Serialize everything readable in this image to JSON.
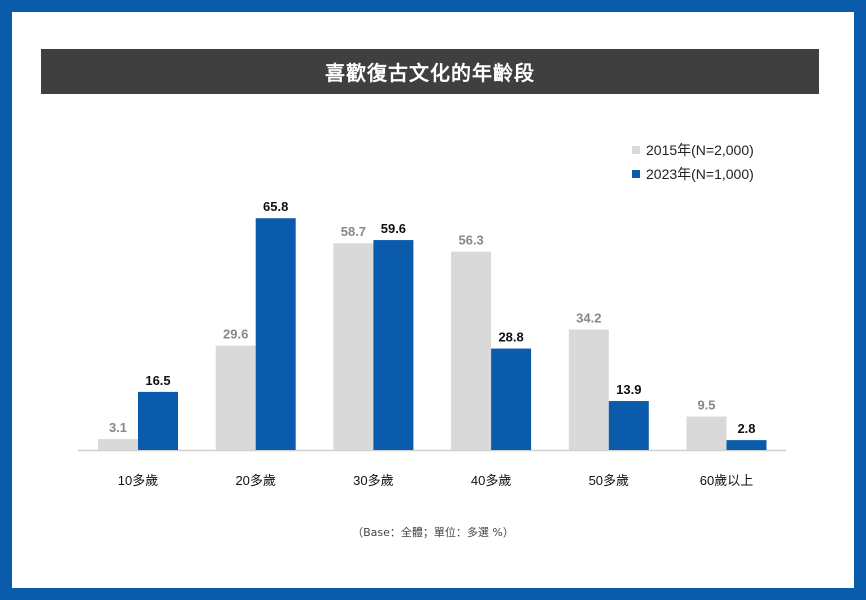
{
  "chart_data": {
    "type": "bar",
    "title": "喜歡復古文化的年齡段",
    "categories": [
      "10多歲",
      "20多歲",
      "30多歲",
      "40多歲",
      "50多歲",
      "60歲以上"
    ],
    "series": [
      {
        "name": "2015年(N=2,000)",
        "color": "#d9d9d9",
        "label_color": "#888888",
        "values": [
          3.1,
          29.6,
          58.7,
          56.3,
          34.2,
          9.5
        ]
      },
      {
        "name": "2023年(N=1,000)",
        "color": "#0a5bab",
        "label_color": "#111111",
        "values": [
          16.5,
          65.8,
          59.6,
          28.8,
          13.9,
          2.8
        ]
      }
    ],
    "ylim": [
      0,
      70
    ],
    "grid": false,
    "legend_position": "top-right",
    "note": "（Base：全體；單位：多選 %）"
  },
  "colors": {
    "frame": "#0a5bab",
    "title_bar": "#3f3f3f"
  }
}
